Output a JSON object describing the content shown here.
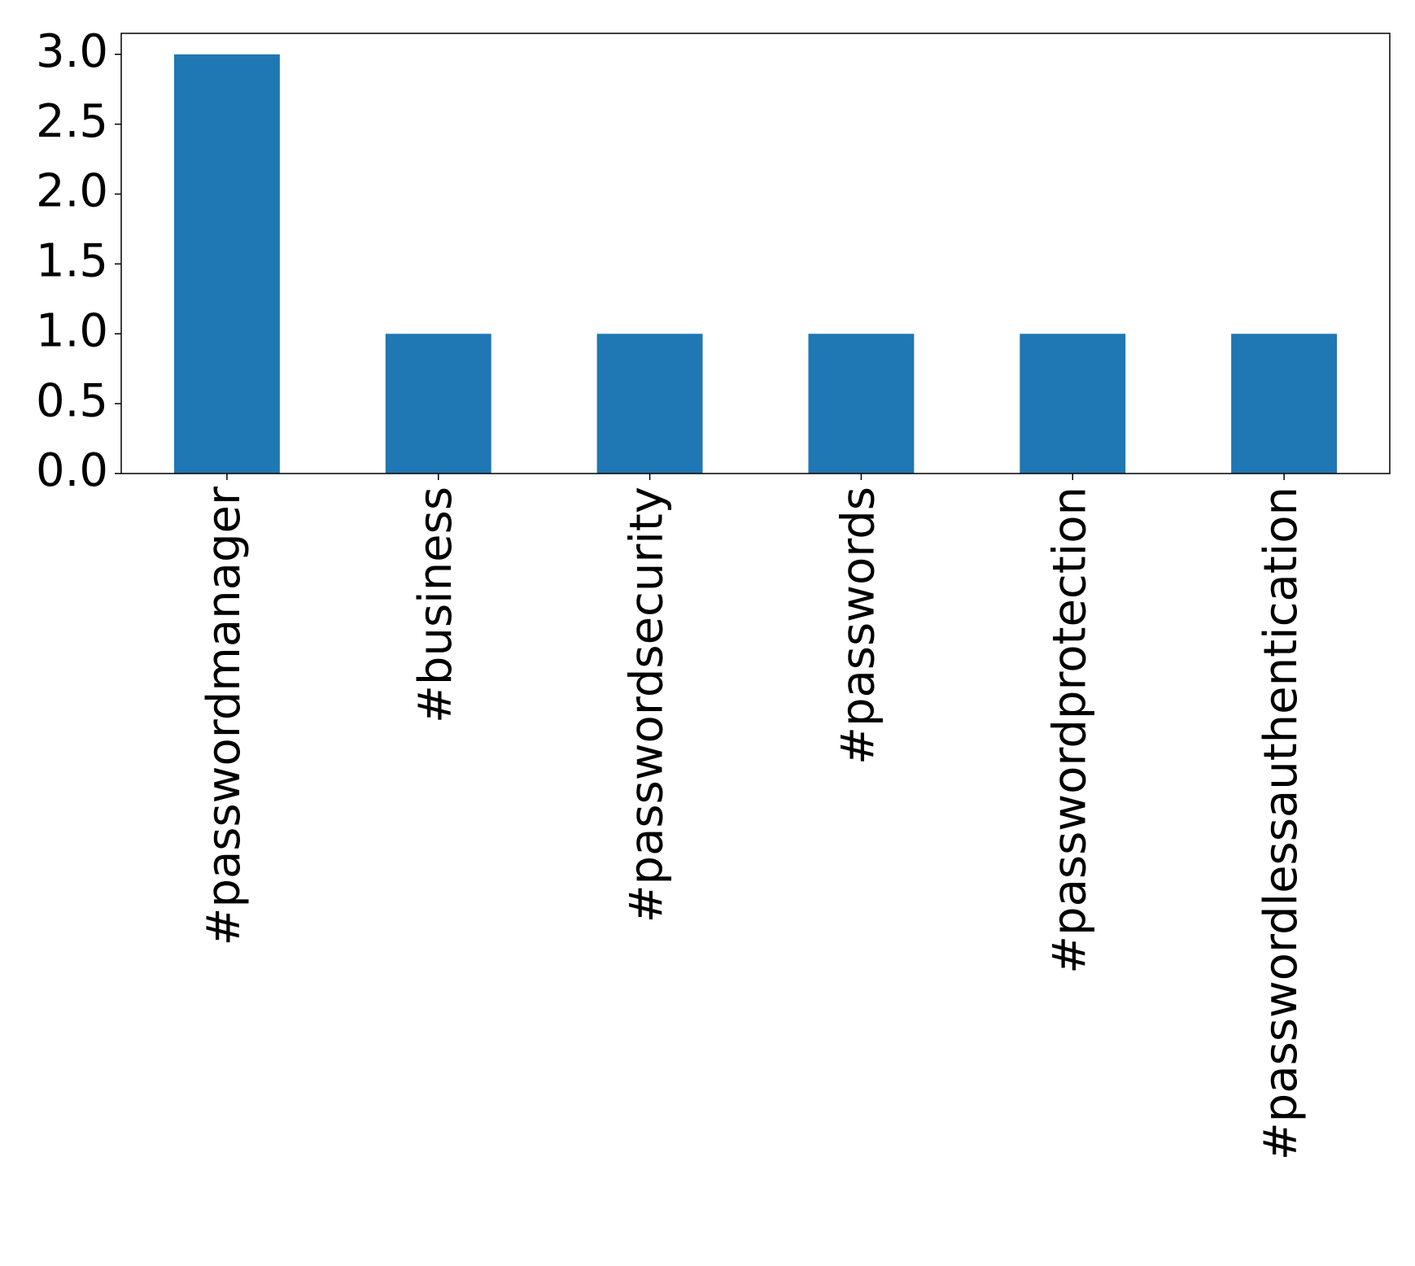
{
  "chart_data": {
    "type": "bar",
    "categories": [
      "#passwordmanager",
      "#business",
      "#passwordsecurity",
      "#passwords",
      "#passwordprotection",
      "#passwordlessauthentication"
    ],
    "values": [
      3,
      1,
      1,
      1,
      1,
      1
    ],
    "color": "#1f77b4",
    "ylim": [
      0,
      3.15
    ],
    "yticks": [
      {
        "value": 0,
        "label": "0.0"
      },
      {
        "value": 0.5,
        "label": "0.5"
      },
      {
        "value": 1,
        "label": "1.0"
      },
      {
        "value": 1.5,
        "label": "1.5"
      },
      {
        "value": 2,
        "label": "2.0"
      },
      {
        "value": 2.5,
        "label": "2.5"
      },
      {
        "value": 3,
        "label": "3.0"
      }
    ],
    "grid": false
  }
}
